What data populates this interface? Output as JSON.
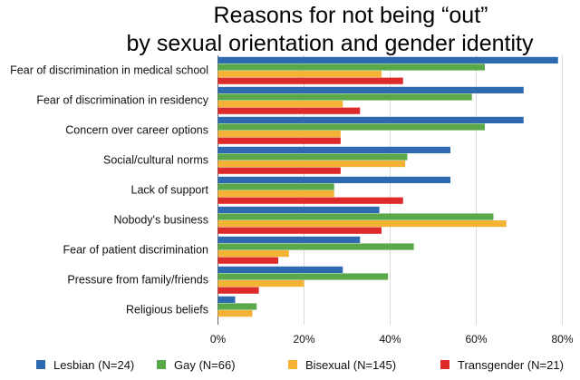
{
  "chart_data": {
    "type": "bar",
    "orientation": "horizontal",
    "title_lines": [
      "Reasons for not being “out”",
      "by sexual orientation and gender identity"
    ],
    "categories": [
      "Fear of discrimination in medical school",
      "Fear of discrimination in residency",
      "Concern over career options",
      "Social/cultural norms",
      "Lack of support",
      "Nobody's business",
      "Fear of patient discrimination",
      "Pressure from family/friends",
      "Religious beliefs"
    ],
    "series": [
      {
        "name": "Lesbian (N=24)",
        "color": "#2e6ab0",
        "values": [
          79,
          71,
          71,
          54,
          54,
          37.5,
          33,
          29,
          4
        ]
      },
      {
        "name": "Gay (N=66)",
        "color": "#5aa84a",
        "values": [
          62,
          59,
          62,
          44,
          27,
          64,
          45.5,
          39.5,
          9
        ]
      },
      {
        "name": "Bisexual (N=145)",
        "color": "#f5b335",
        "values": [
          38,
          29,
          28.5,
          43.5,
          27,
          67,
          16.5,
          20,
          8
        ]
      },
      {
        "name": "Transgender (N=21)",
        "color": "#dd2a2a",
        "values": [
          43,
          33,
          28.5,
          28.5,
          43,
          38,
          14,
          9.5,
          0
        ]
      }
    ],
    "xlim": [
      0,
      80
    ],
    "xticks": [
      "0%",
      "20%",
      "40%",
      "60%",
      "80%"
    ],
    "grid": true,
    "legend_position": "bottom"
  }
}
